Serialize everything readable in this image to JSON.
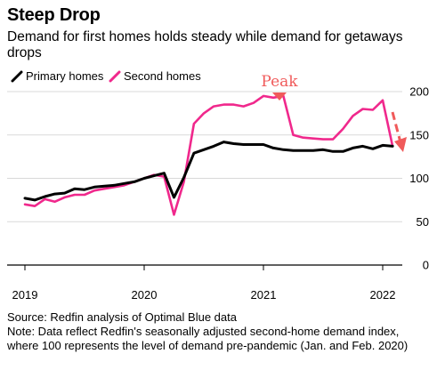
{
  "header": {
    "title": "Steep Drop",
    "subtitle": "Demand for first homes holds steady while demand for getaways drops"
  },
  "footer": {
    "source": "Source: Redfin analysis of Optimal Blue data",
    "note_line1": "Note: Data reflect Redfin's seasonally adjusted second-home demand index,",
    "note_line2": "where 100 represents the level of demand pre-pandemic (Jan. and Feb. 2020)"
  },
  "chart_data": {
    "type": "line",
    "title": "Steep Drop",
    "subtitle": "Demand for first homes holds steady while demand for getaways drops",
    "xlabel": "",
    "ylabel": "",
    "xlim": [
      2019.0,
      2022.17
    ],
    "ylim": [
      0,
      200
    ],
    "x_ticks": [
      "2019",
      "2020",
      "2021",
      "2022"
    ],
    "y_ticks": [
      0,
      50,
      100,
      150,
      200
    ],
    "grid": true,
    "legend": "top-left",
    "annotation": "Peak",
    "colors": {
      "primary": "#000000",
      "second": "#f0288c",
      "annotation": "#f05a5a"
    },
    "x": [
      2019.0,
      2019.083,
      2019.167,
      2019.25,
      2019.333,
      2019.417,
      2019.5,
      2019.583,
      2019.667,
      2019.75,
      2019.833,
      2019.917,
      2020.0,
      2020.083,
      2020.167,
      2020.25,
      2020.333,
      2020.417,
      2020.5,
      2020.583,
      2020.667,
      2020.75,
      2020.833,
      2020.917,
      2021.0,
      2021.083,
      2021.167,
      2021.25,
      2021.333,
      2021.417,
      2021.5,
      2021.583,
      2021.667,
      2021.75,
      2021.833,
      2021.917,
      2022.0,
      2022.083
    ],
    "series": [
      {
        "name": "Primary homes",
        "values": [
          77,
          75,
          79,
          82,
          83,
          88,
          87,
          90,
          91,
          92,
          94,
          96,
          100,
          103,
          106,
          78,
          101,
          129,
          133,
          137,
          142,
          140,
          139,
          139,
          139,
          135,
          133,
          132,
          132,
          132,
          133,
          131,
          131,
          135,
          137,
          134,
          138,
          137
        ]
      },
      {
        "name": "Second homes",
        "values": [
          70,
          68,
          76,
          73,
          78,
          81,
          81,
          86,
          88,
          90,
          92,
          96,
          100,
          104,
          102,
          58,
          96,
          163,
          175,
          183,
          185,
          185,
          183,
          187,
          195,
          193,
          195,
          150,
          147,
          146,
          145,
          145,
          157,
          172,
          180,
          179,
          190,
          137
        ]
      }
    ]
  }
}
